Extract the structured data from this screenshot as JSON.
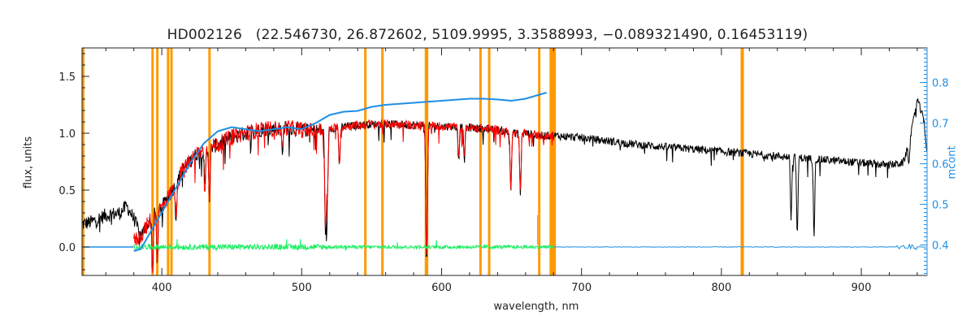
{
  "chart_data": {
    "type": "line",
    "title": "HD002126   (22.546730, 26.872602, 5109.9995, 3.3588993, −0.089321490, 0.16453119)",
    "xlabel": "wavelength, nm",
    "ylabel": "flux, units",
    "y2label": "mcont",
    "xlim": [
      343,
      947
    ],
    "ylim": [
      -0.25,
      1.75
    ],
    "y2lim": [
      0.325,
      0.885
    ],
    "x_ticks": [
      400,
      500,
      600,
      700,
      800,
      900
    ],
    "y_ticks": [
      0.0,
      0.5,
      1.0,
      1.5
    ],
    "y_tick_labels": [
      "0.0",
      "0.5",
      "1.0",
      "1.5"
    ],
    "y2_ticks": [
      0.4,
      0.5,
      0.6,
      0.7,
      0.8
    ],
    "y2_tick_labels": [
      "0.4",
      "0.5",
      "0.6",
      "0.7",
      "0.8"
    ],
    "colors": {
      "observed": "#000000",
      "model": "#ff0000",
      "residual": "#22ee66",
      "continuum": "#1e8fe6",
      "masked": "#ff9900",
      "axis": "#222222"
    },
    "masked_wavelengths": [
      343.8,
      393.4,
      396.8,
      404.5,
      406.9,
      434.1,
      545.5,
      557.7,
      588.8,
      589.6,
      627.8,
      634.0,
      669.8,
      678.0,
      679.5,
      680.8,
      814.6,
      815.2
    ],
    "series": [
      {
        "role": "observed",
        "x": [
          343,
          350,
          360,
          370,
          375,
          380,
          385,
          390,
          395,
          400,
          405,
          410,
          415,
          420,
          425,
          430,
          440,
          450,
          460,
          470,
          480,
          490,
          500,
          510,
          520,
          530,
          540,
          550,
          560,
          570,
          580,
          590,
          600,
          610,
          620,
          630,
          640,
          650,
          660,
          670,
          680,
          690,
          700,
          720,
          740,
          760,
          780,
          800,
          820,
          840,
          860,
          880,
          900,
          920,
          930,
          935,
          940,
          945,
          947
        ],
        "y": [
          0.2,
          0.22,
          0.28,
          0.3,
          0.36,
          0.25,
          0.1,
          0.2,
          0.3,
          0.35,
          0.45,
          0.55,
          0.68,
          0.75,
          0.82,
          0.85,
          0.9,
          0.97,
          1.0,
          1.03,
          1.04,
          1.05,
          1.03,
          1.02,
          1.04,
          1.06,
          1.07,
          1.08,
          1.08,
          1.08,
          1.07,
          1.07,
          1.06,
          1.06,
          1.05,
          1.04,
          1.03,
          1.0,
          1.0,
          0.98,
          0.98,
          0.97,
          0.96,
          0.93,
          0.9,
          0.88,
          0.86,
          0.84,
          0.82,
          0.8,
          0.78,
          0.76,
          0.74,
          0.72,
          0.74,
          0.95,
          1.3,
          1.1,
          0.8
        ]
      },
      {
        "role": "model",
        "x": [
          380,
          385,
          390,
          395,
          400,
          405,
          410,
          415,
          420,
          425,
          430,
          440,
          450,
          460,
          470,
          480,
          490,
          500,
          510,
          520,
          530,
          540,
          550,
          560,
          570,
          580,
          590,
          600,
          610,
          620,
          630,
          640,
          650,
          660,
          670,
          680
        ],
        "y": [
          0.05,
          0.1,
          0.2,
          0.3,
          0.35,
          0.45,
          0.55,
          0.68,
          0.75,
          0.82,
          0.85,
          0.9,
          0.97,
          1.0,
          1.03,
          1.04,
          1.05,
          1.03,
          1.02,
          1.04,
          1.06,
          1.07,
          1.08,
          1.08,
          1.08,
          1.07,
          1.07,
          1.06,
          1.06,
          1.05,
          1.04,
          1.03,
          1.0,
          1.0,
          0.98,
          0.97
        ]
      },
      {
        "role": "residual",
        "x": [
          380,
          400,
          450,
          500,
          550,
          600,
          650,
          680
        ],
        "y": [
          0.0,
          0.0,
          0.0,
          0.0,
          0.0,
          0.0,
          0.0,
          0.0
        ]
      },
      {
        "role": "residual-extension",
        "x": [
          680,
          947
        ],
        "y": [
          0.0,
          0.0
        ]
      },
      {
        "role": "continuum",
        "axis": "y2",
        "x": [
          380,
          385,
          390,
          400,
          410,
          420,
          430,
          440,
          450,
          460,
          470,
          480,
          490,
          500,
          510,
          520,
          530,
          540,
          550,
          560,
          580,
          600,
          620,
          630,
          640,
          650,
          660,
          670,
          675
        ],
        "y": [
          0.385,
          0.39,
          0.42,
          0.48,
          0.54,
          0.6,
          0.65,
          0.68,
          0.69,
          0.685,
          0.68,
          0.685,
          0.69,
          0.685,
          0.7,
          0.72,
          0.728,
          0.73,
          0.74,
          0.745,
          0.75,
          0.755,
          0.76,
          0.76,
          0.758,
          0.755,
          0.76,
          0.77,
          0.775
        ]
      },
      {
        "role": "continuum-baseline",
        "x": [
          343,
          380
        ],
        "y": [
          0.0,
          0.0
        ]
      }
    ],
    "absorption_lines": [
      {
        "x": 393.4,
        "depth": 0.5
      },
      {
        "x": 396.8,
        "depth": 0.45
      },
      {
        "x": 410.2,
        "depth": 0.3
      },
      {
        "x": 430.8,
        "depth": 0.35
      },
      {
        "x": 434.1,
        "depth": 0.45
      },
      {
        "x": 486.1,
        "depth": 0.2
      },
      {
        "x": 516.7,
        "depth": 0.5
      },
      {
        "x": 517.3,
        "depth": 0.55
      },
      {
        "x": 518.4,
        "depth": 0.6
      },
      {
        "x": 527.0,
        "depth": 0.35
      },
      {
        "x": 589.0,
        "depth": 0.75
      },
      {
        "x": 589.6,
        "depth": 0.7
      },
      {
        "x": 612.2,
        "depth": 0.3
      },
      {
        "x": 616.2,
        "depth": 0.3
      },
      {
        "x": 649.5,
        "depth": 0.5
      },
      {
        "x": 656.3,
        "depth": 0.55
      },
      {
        "x": 849.8,
        "depth": 0.55
      },
      {
        "x": 854.2,
        "depth": 0.7
      },
      {
        "x": 866.2,
        "depth": 0.65
      },
      {
        "x": 934.0,
        "depth": 0.15
      }
    ]
  }
}
